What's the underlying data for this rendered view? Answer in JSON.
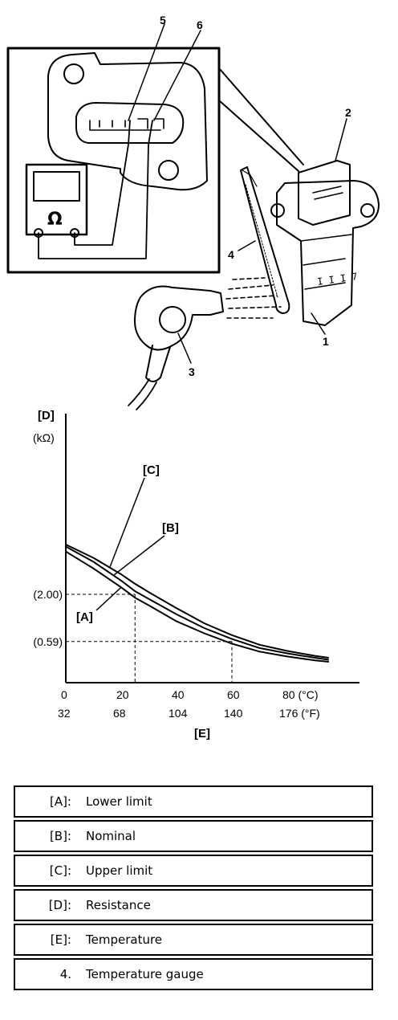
{
  "callouts": [
    "1",
    "2",
    "3",
    "4",
    "5",
    "6"
  ],
  "meter_symbol": "Ω",
  "chart_data": {
    "type": "line",
    "ylabel_code": "[D]",
    "ylabel_unit": "(kΩ)",
    "xlabel_code": "[E]",
    "x_ticks_c": [
      "0",
      "20",
      "40",
      "60",
      "80 (°C)"
    ],
    "x_ticks_f": [
      "32",
      "68",
      "104",
      "140",
      "176 (°F)"
    ],
    "y_marks": [
      "(2.00)",
      "(0.59)"
    ],
    "reference_lines": [
      {
        "temp_c": 25,
        "resistance_kohm": 2.0
      },
      {
        "temp_c": 60,
        "resistance_kohm": 0.59
      }
    ],
    "x": [
      0,
      10,
      20,
      25,
      30,
      40,
      50,
      60,
      70,
      80,
      90,
      95
    ],
    "series": [
      {
        "name": "[C]",
        "values": [
          7.4,
          4.9,
          3.2,
          2.55,
          2.1,
          1.45,
          1.0,
          0.72,
          0.53,
          0.42,
          0.34,
          0.31
        ]
      },
      {
        "name": "[B]",
        "values": [
          6.9,
          4.4,
          2.75,
          2.15,
          1.8,
          1.25,
          0.88,
          0.64,
          0.47,
          0.38,
          0.31,
          0.28
        ]
      },
      {
        "name": "[A]",
        "values": [
          5.9,
          3.7,
          2.35,
          1.85,
          1.55,
          1.05,
          0.76,
          0.55,
          0.41,
          0.33,
          0.27,
          0.25
        ]
      }
    ]
  },
  "legend": [
    {
      "key": "[A]:",
      "value": "Lower limit"
    },
    {
      "key": "[B]:",
      "value": "Nominal"
    },
    {
      "key": "[C]:",
      "value": "Upper limit"
    },
    {
      "key": "[D]:",
      "value": "Resistance"
    },
    {
      "key": "[E]:",
      "value": "Temperature"
    },
    {
      "key": "4.",
      "value": "Temperature gauge"
    }
  ]
}
